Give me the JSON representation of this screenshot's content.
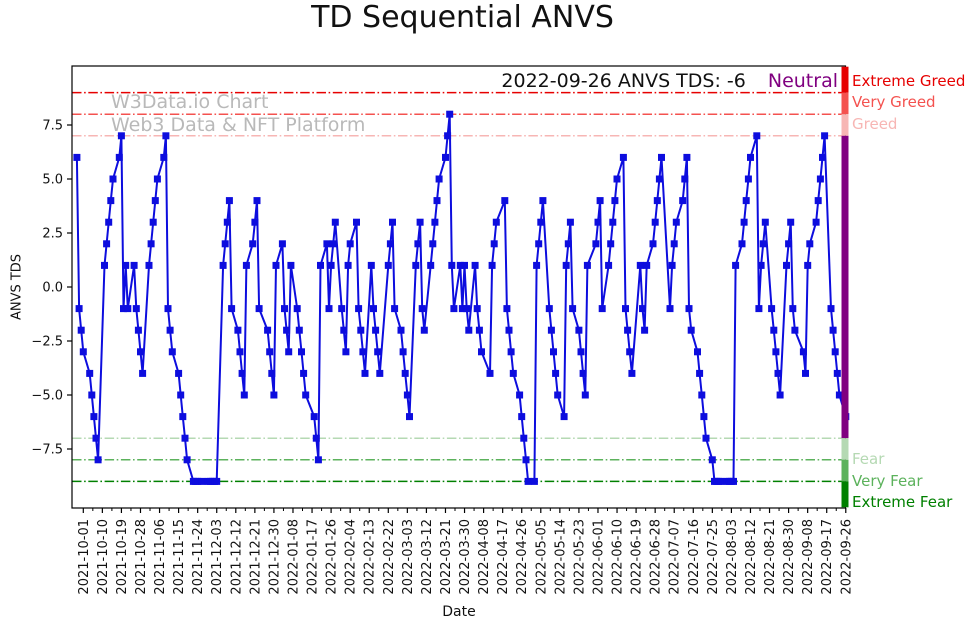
{
  "title": "TD Sequential ANVS",
  "watermark": {
    "line1": "W3Data.io Chart",
    "line2": "Web3 Data & NFT Platform"
  },
  "annotation": {
    "text": "2022-09-26 ANVS TDS: -6",
    "status": "Neutral",
    "status_color": "#800080"
  },
  "axes": {
    "ylabel": "ANVS TDS",
    "xlabel": "Date",
    "yticks": [
      {
        "label": "7.5",
        "value": 7.5
      },
      {
        "label": "5.0",
        "value": 5.0
      },
      {
        "label": "2.5",
        "value": 2.5
      },
      {
        "label": "0.0",
        "value": 0.0
      },
      {
        "label": "−2.5",
        "value": -2.5
      },
      {
        "label": "−5.0",
        "value": -5.0
      },
      {
        "label": "−7.5",
        "value": -7.5
      }
    ],
    "xticks": [
      "2021-10-01",
      "2021-10-10",
      "2021-10-19",
      "2021-10-28",
      "2021-11-06",
      "2021-11-15",
      "2021-11-24",
      "2021-12-03",
      "2021-12-12",
      "2021-12-21",
      "2021-12-30",
      "2022-01-08",
      "2022-01-17",
      "2022-01-26",
      "2022-02-04",
      "2022-02-13",
      "2022-02-22",
      "2022-03-03",
      "2022-03-12",
      "2022-03-21",
      "2022-03-30",
      "2022-04-08",
      "2022-04-17",
      "2022-04-26",
      "2022-05-05",
      "2022-05-14",
      "2022-05-23",
      "2022-06-01",
      "2022-06-10",
      "2022-06-19",
      "2022-06-28",
      "2022-07-07",
      "2022-07-16",
      "2022-07-25",
      "2022-08-03",
      "2022-08-12",
      "2022-08-21",
      "2022-08-30",
      "2022-09-08",
      "2022-09-17",
      "2022-09-26"
    ]
  },
  "zones": [
    {
      "label": "Extreme Greed",
      "value": 9,
      "color": "#e60000"
    },
    {
      "label": "Very Greed",
      "value": 8,
      "color": "#f4524f"
    },
    {
      "label": "Greed",
      "value": 7,
      "color": "#f7b6b4"
    },
    {
      "label": "Fear",
      "value": -7,
      "color": "#b5d9b3"
    },
    {
      "label": "Very Fear",
      "value": -8,
      "color": "#5cb25c"
    },
    {
      "label": "Extreme Fear",
      "value": -9,
      "color": "#008000"
    }
  ],
  "neutral_color": "#800080",
  "chart_data": {
    "type": "line",
    "title": "TD Sequential ANVS",
    "xlabel": "Date",
    "ylabel": "ANVS TDS",
    "ylim": [
      -10.2,
      10.2
    ],
    "x_range": [
      "2021-09-28",
      "2022-09-26"
    ],
    "line_color": "#0d0dde",
    "marker": "square",
    "legend": "none",
    "grid": false,
    "thresholds": [
      {
        "label": "Extreme Greed",
        "value": 9,
        "color": "#e60000"
      },
      {
        "label": "Very Greed",
        "value": 8,
        "color": "#f4524f"
      },
      {
        "label": "Greed",
        "value": 7,
        "color": "#f7b6b4"
      },
      {
        "label": "Fear",
        "value": -7,
        "color": "#b5d9b3"
      },
      {
        "label": "Very Fear",
        "value": -8,
        "color": "#5cb25c"
      },
      {
        "label": "Extreme Fear",
        "value": -9,
        "color": "#008000"
      }
    ],
    "series": [
      {
        "name": "ANVS TDS",
        "points": [
          [
            "2021-09-28",
            6
          ],
          [
            "2021-09-29",
            -1
          ],
          [
            "2021-09-30",
            -2
          ],
          [
            "2021-10-01",
            -3
          ],
          [
            "2021-10-04",
            -4
          ],
          [
            "2021-10-05",
            -5
          ],
          [
            "2021-10-06",
            -6
          ],
          [
            "2021-10-07",
            -7
          ],
          [
            "2021-10-08",
            -8
          ],
          [
            "2021-10-11",
            1
          ],
          [
            "2021-10-12",
            2
          ],
          [
            "2021-10-13",
            3
          ],
          [
            "2021-10-14",
            4
          ],
          [
            "2021-10-15",
            5
          ],
          [
            "2021-10-18",
            6
          ],
          [
            "2021-10-19",
            7
          ],
          [
            "2021-10-20",
            -1
          ],
          [
            "2021-10-21",
            1
          ],
          [
            "2021-10-22",
            -1
          ],
          [
            "2021-10-25",
            1
          ],
          [
            "2021-10-26",
            -1
          ],
          [
            "2021-10-27",
            -2
          ],
          [
            "2021-10-28",
            -3
          ],
          [
            "2021-10-29",
            -4
          ],
          [
            "2021-11-01",
            1
          ],
          [
            "2021-11-02",
            2
          ],
          [
            "2021-11-03",
            3
          ],
          [
            "2021-11-04",
            4
          ],
          [
            "2021-11-05",
            5
          ],
          [
            "2021-11-08",
            6
          ],
          [
            "2021-11-09",
            7
          ],
          [
            "2021-11-10",
            -1
          ],
          [
            "2021-11-11",
            -2
          ],
          [
            "2021-11-12",
            -3
          ],
          [
            "2021-11-15",
            -4
          ],
          [
            "2021-11-16",
            -5
          ],
          [
            "2021-11-17",
            -6
          ],
          [
            "2021-11-18",
            -7
          ],
          [
            "2021-11-19",
            -8
          ],
          [
            "2021-11-22",
            -9
          ],
          [
            "2021-11-23",
            -9
          ],
          [
            "2021-11-24",
            -9
          ],
          [
            "2021-11-26",
            -9
          ],
          [
            "2021-11-29",
            -9
          ],
          [
            "2021-11-30",
            -9
          ],
          [
            "2021-12-01",
            -9
          ],
          [
            "2021-12-02",
            -9
          ],
          [
            "2021-12-03",
            -9
          ],
          [
            "2021-12-06",
            1
          ],
          [
            "2021-12-07",
            2
          ],
          [
            "2021-12-08",
            3
          ],
          [
            "2021-12-09",
            4
          ],
          [
            "2021-12-10",
            -1
          ],
          [
            "2021-12-13",
            -2
          ],
          [
            "2021-12-14",
            -3
          ],
          [
            "2021-12-15",
            -4
          ],
          [
            "2021-12-16",
            -5
          ],
          [
            "2021-12-17",
            1
          ],
          [
            "2021-12-20",
            2
          ],
          [
            "2021-12-21",
            3
          ],
          [
            "2021-12-22",
            4
          ],
          [
            "2021-12-23",
            -1
          ],
          [
            "2021-12-27",
            -2
          ],
          [
            "2021-12-28",
            -3
          ],
          [
            "2021-12-29",
            -4
          ],
          [
            "2021-12-30",
            -5
          ],
          [
            "2021-12-31",
            1
          ],
          [
            "2022-01-03",
            2
          ],
          [
            "2022-01-04",
            -1
          ],
          [
            "2022-01-05",
            -2
          ],
          [
            "2022-01-06",
            -3
          ],
          [
            "2022-01-07",
            1
          ],
          [
            "2022-01-10",
            -1
          ],
          [
            "2022-01-11",
            -2
          ],
          [
            "2022-01-12",
            -3
          ],
          [
            "2022-01-13",
            -4
          ],
          [
            "2022-01-14",
            -5
          ],
          [
            "2022-01-18",
            -6
          ],
          [
            "2022-01-19",
            -7
          ],
          [
            "2022-01-20",
            -8
          ],
          [
            "2022-01-21",
            1
          ],
          [
            "2022-01-24",
            2
          ],
          [
            "2022-01-25",
            -1
          ],
          [
            "2022-01-26",
            1
          ],
          [
            "2022-01-27",
            2
          ],
          [
            "2022-01-28",
            3
          ],
          [
            "2022-01-31",
            -1
          ],
          [
            "2022-02-01",
            -2
          ],
          [
            "2022-02-02",
            -3
          ],
          [
            "2022-02-03",
            1
          ],
          [
            "2022-02-04",
            2
          ],
          [
            "2022-02-07",
            3
          ],
          [
            "2022-02-08",
            -1
          ],
          [
            "2022-02-09",
            -2
          ],
          [
            "2022-02-10",
            -3
          ],
          [
            "2022-02-11",
            -4
          ],
          [
            "2022-02-14",
            1
          ],
          [
            "2022-02-15",
            -1
          ],
          [
            "2022-02-16",
            -2
          ],
          [
            "2022-02-17",
            -3
          ],
          [
            "2022-02-18",
            -4
          ],
          [
            "2022-02-22",
            1
          ],
          [
            "2022-02-23",
            2
          ],
          [
            "2022-02-24",
            3
          ],
          [
            "2022-02-25",
            -1
          ],
          [
            "2022-02-28",
            -2
          ],
          [
            "2022-03-01",
            -3
          ],
          [
            "2022-03-02",
            -4
          ],
          [
            "2022-03-03",
            -5
          ],
          [
            "2022-03-04",
            -6
          ],
          [
            "2022-03-07",
            1
          ],
          [
            "2022-03-08",
            2
          ],
          [
            "2022-03-09",
            3
          ],
          [
            "2022-03-10",
            -1
          ],
          [
            "2022-03-11",
            -2
          ],
          [
            "2022-03-14",
            1
          ],
          [
            "2022-03-15",
            2
          ],
          [
            "2022-03-16",
            3
          ],
          [
            "2022-03-17",
            4
          ],
          [
            "2022-03-18",
            5
          ],
          [
            "2022-03-21",
            6
          ],
          [
            "2022-03-22",
            7
          ],
          [
            "2022-03-23",
            8
          ],
          [
            "2022-03-24",
            1
          ],
          [
            "2022-03-25",
            -1
          ],
          [
            "2022-03-28",
            1
          ],
          [
            "2022-03-29",
            -1
          ],
          [
            "2022-03-30",
            1
          ],
          [
            "2022-03-31",
            -1
          ],
          [
            "2022-04-01",
            -2
          ],
          [
            "2022-04-04",
            1
          ],
          [
            "2022-04-05",
            -1
          ],
          [
            "2022-04-06",
            -2
          ],
          [
            "2022-04-07",
            -3
          ],
          [
            "2022-04-11",
            -4
          ],
          [
            "2022-04-12",
            1
          ],
          [
            "2022-04-13",
            2
          ],
          [
            "2022-04-14",
            3
          ],
          [
            "2022-04-18",
            4
          ],
          [
            "2022-04-19",
            -1
          ],
          [
            "2022-04-20",
            -2
          ],
          [
            "2022-04-21",
            -3
          ],
          [
            "2022-04-22",
            -4
          ],
          [
            "2022-04-25",
            -5
          ],
          [
            "2022-04-26",
            -6
          ],
          [
            "2022-04-27",
            -7
          ],
          [
            "2022-04-28",
            -8
          ],
          [
            "2022-04-29",
            -9
          ],
          [
            "2022-05-02",
            -9
          ],
          [
            "2022-05-03",
            1
          ],
          [
            "2022-05-04",
            2
          ],
          [
            "2022-05-05",
            3
          ],
          [
            "2022-05-06",
            4
          ],
          [
            "2022-05-09",
            -1
          ],
          [
            "2022-05-10",
            -2
          ],
          [
            "2022-05-11",
            -3
          ],
          [
            "2022-05-12",
            -4
          ],
          [
            "2022-05-13",
            -5
          ],
          [
            "2022-05-16",
            -6
          ],
          [
            "2022-05-17",
            1
          ],
          [
            "2022-05-18",
            2
          ],
          [
            "2022-05-19",
            3
          ],
          [
            "2022-05-20",
            -1
          ],
          [
            "2022-05-23",
            -2
          ],
          [
            "2022-05-24",
            -3
          ],
          [
            "2022-05-25",
            -4
          ],
          [
            "2022-05-26",
            -5
          ],
          [
            "2022-05-27",
            1
          ],
          [
            "2022-05-31",
            2
          ],
          [
            "2022-06-01",
            3
          ],
          [
            "2022-06-02",
            4
          ],
          [
            "2022-06-03",
            -1
          ],
          [
            "2022-06-06",
            1
          ],
          [
            "2022-06-07",
            2
          ],
          [
            "2022-06-08",
            3
          ],
          [
            "2022-06-09",
            4
          ],
          [
            "2022-06-10",
            5
          ],
          [
            "2022-06-13",
            6
          ],
          [
            "2022-06-14",
            -1
          ],
          [
            "2022-06-15",
            -2
          ],
          [
            "2022-06-16",
            -3
          ],
          [
            "2022-06-17",
            -4
          ],
          [
            "2022-06-21",
            1
          ],
          [
            "2022-06-22",
            -1
          ],
          [
            "2022-06-23",
            -2
          ],
          [
            "2022-06-24",
            1
          ],
          [
            "2022-06-27",
            2
          ],
          [
            "2022-06-28",
            3
          ],
          [
            "2022-06-29",
            4
          ],
          [
            "2022-06-30",
            5
          ],
          [
            "2022-07-01",
            6
          ],
          [
            "2022-07-05",
            -1
          ],
          [
            "2022-07-06",
            1
          ],
          [
            "2022-07-07",
            2
          ],
          [
            "2022-07-08",
            3
          ],
          [
            "2022-07-11",
            4
          ],
          [
            "2022-07-12",
            5
          ],
          [
            "2022-07-13",
            6
          ],
          [
            "2022-07-14",
            -1
          ],
          [
            "2022-07-15",
            -2
          ],
          [
            "2022-07-18",
            -3
          ],
          [
            "2022-07-19",
            -4
          ],
          [
            "2022-07-20",
            -5
          ],
          [
            "2022-07-21",
            -6
          ],
          [
            "2022-07-22",
            -7
          ],
          [
            "2022-07-25",
            -8
          ],
          [
            "2022-07-26",
            -9
          ],
          [
            "2022-07-27",
            -9
          ],
          [
            "2022-07-28",
            -9
          ],
          [
            "2022-07-29",
            -9
          ],
          [
            "2022-08-01",
            -9
          ],
          [
            "2022-08-02",
            -9
          ],
          [
            "2022-08-03",
            -9
          ],
          [
            "2022-08-04",
            -9
          ],
          [
            "2022-08-05",
            1
          ],
          [
            "2022-08-08",
            2
          ],
          [
            "2022-08-09",
            3
          ],
          [
            "2022-08-10",
            4
          ],
          [
            "2022-08-11",
            5
          ],
          [
            "2022-08-12",
            6
          ],
          [
            "2022-08-15",
            7
          ],
          [
            "2022-08-16",
            -1
          ],
          [
            "2022-08-17",
            1
          ],
          [
            "2022-08-18",
            2
          ],
          [
            "2022-08-19",
            3
          ],
          [
            "2022-08-22",
            -1
          ],
          [
            "2022-08-23",
            -2
          ],
          [
            "2022-08-24",
            -3
          ],
          [
            "2022-08-25",
            -4
          ],
          [
            "2022-08-26",
            -5
          ],
          [
            "2022-08-29",
            1
          ],
          [
            "2022-08-30",
            2
          ],
          [
            "2022-08-31",
            3
          ],
          [
            "2022-09-01",
            -1
          ],
          [
            "2022-09-02",
            -2
          ],
          [
            "2022-09-06",
            -3
          ],
          [
            "2022-09-07",
            -4
          ],
          [
            "2022-09-08",
            1
          ],
          [
            "2022-09-09",
            2
          ],
          [
            "2022-09-12",
            3
          ],
          [
            "2022-09-13",
            4
          ],
          [
            "2022-09-14",
            5
          ],
          [
            "2022-09-15",
            6
          ],
          [
            "2022-09-16",
            7
          ],
          [
            "2022-09-19",
            -1
          ],
          [
            "2022-09-20",
            -2
          ],
          [
            "2022-09-21",
            -3
          ],
          [
            "2022-09-22",
            -4
          ],
          [
            "2022-09-23",
            -5
          ],
          [
            "2022-09-26",
            -6
          ]
        ]
      }
    ]
  }
}
